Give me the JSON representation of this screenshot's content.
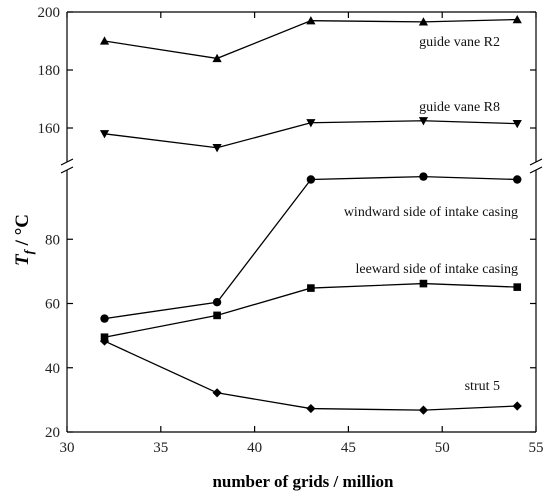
{
  "chart_data": {
    "type": "line",
    "xlabel": "number of grids / million",
    "ylabel": {
      "main": "T",
      "subscript": "f",
      "unit": " / °C"
    },
    "xlim": [
      30,
      55
    ],
    "x_ticks": [
      "30",
      "35",
      "40",
      "45",
      "50",
      "55"
    ],
    "y_ticks_upper": [
      "160",
      "180",
      "200"
    ],
    "y_ticks_lower": [
      "20",
      "40",
      "60",
      "80"
    ],
    "ylim_upper": [
      150,
      200
    ],
    "ylim_lower": [
      20,
      100
    ],
    "broken_y_axis": true,
    "grid": false,
    "x": [
      32,
      38,
      43,
      49,
      54
    ],
    "series": [
      {
        "name": "guide vane R2",
        "marker": "triangle-up",
        "panel": "upper",
        "values": [
          190,
          184,
          197,
          196.6,
          197.4
        ]
      },
      {
        "name": "guide vane R8",
        "marker": "triangle-down",
        "panel": "upper",
        "values": [
          158,
          153.2,
          161.8,
          162.5,
          161.5
        ]
      },
      {
        "name": "windward side of intake casing",
        "marker": "circle",
        "panel": "lower",
        "values": [
          55.3,
          60.4,
          98.6,
          99.5,
          98.6
        ]
      },
      {
        "name": "leeward side of intake casing",
        "marker": "square",
        "panel": "lower",
        "values": [
          49.5,
          56.3,
          64.8,
          66.2,
          65.1
        ]
      },
      {
        "name": "strut 5",
        "marker": "diamond",
        "panel": "lower",
        "values": [
          48.3,
          32.2,
          27.3,
          26.8,
          28.1
        ]
      }
    ]
  }
}
